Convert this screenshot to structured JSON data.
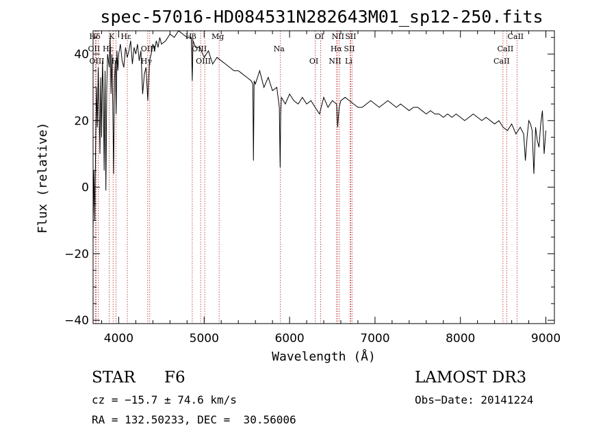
{
  "chart_data": {
    "type": "line",
    "title": "spec-57016-HD084531N282643M01_sp12-250.fits",
    "xlabel": "Wavelength (Å)",
    "ylabel": "Flux (relative)",
    "xlim": [
      3700,
      9100
    ],
    "ylim": [
      -41,
      47
    ],
    "xticks": [
      4000,
      5000,
      6000,
      7000,
      8000,
      9000
    ],
    "yticks": [
      -40,
      -20,
      0,
      20,
      40
    ],
    "grid": false,
    "series": [
      {
        "x": [
          3700,
          3710,
          3720,
          3730,
          3740,
          3750,
          3760,
          3770,
          3780,
          3790,
          3800,
          3810,
          3820,
          3830,
          3840,
          3850,
          3860,
          3870,
          3880,
          3890,
          3900,
          3910,
          3920,
          3930,
          3940,
          3950,
          3960,
          3970,
          3980,
          3990,
          4000,
          4020,
          4040,
          4060,
          4080,
          4100,
          4120,
          4140,
          4160,
          4180,
          4200,
          4220,
          4240,
          4260,
          4280,
          4300,
          4320,
          4340,
          4360,
          4380,
          4400,
          4420,
          4440,
          4460,
          4480,
          4500,
          4550,
          4600,
          4650,
          4700,
          4750,
          4800,
          4850,
          4861,
          4870,
          4900,
          4950,
          5000,
          5050,
          5100,
          5150,
          5200,
          5250,
          5300,
          5350,
          5400,
          5450,
          5500,
          5550,
          5570,
          5577,
          5585,
          5600,
          5650,
          5700,
          5750,
          5800,
          5850,
          5880,
          5890,
          5896,
          5905,
          5950,
          6000,
          6050,
          6100,
          6150,
          6200,
          6250,
          6300,
          6350,
          6400,
          6450,
          6500,
          6550,
          6563,
          6580,
          6600,
          6650,
          6700,
          6750,
          6800,
          6850,
          6900,
          6950,
          7000,
          7050,
          7100,
          7150,
          7200,
          7250,
          7300,
          7350,
          7400,
          7450,
          7500,
          7550,
          7600,
          7650,
          7700,
          7750,
          7800,
          7850,
          7900,
          7950,
          8000,
          8050,
          8100,
          8150,
          8200,
          8250,
          8300,
          8350,
          8400,
          8450,
          8500,
          8550,
          8600,
          8650,
          8700,
          8720,
          8740,
          8760,
          8780,
          8800,
          8820,
          8840,
          8860,
          8880,
          8900,
          8920,
          8940,
          8960,
          8980,
          9000
        ],
        "y": [
          -13,
          5,
          -10,
          12,
          30,
          18,
          36,
          25,
          10,
          33,
          15,
          38,
          28,
          5,
          35,
          -1,
          30,
          40,
          38,
          36,
          45,
          28,
          40,
          26,
          4,
          32,
          38,
          22,
          41,
          35,
          40,
          43,
          38,
          36,
          42,
          39,
          41,
          44,
          37,
          42,
          40,
          43,
          38,
          41,
          28,
          34,
          36,
          26,
          38,
          40,
          43,
          41,
          44,
          42,
          45,
          43,
          44,
          46,
          45,
          47,
          46,
          45,
          45,
          32,
          44,
          42,
          42,
          39,
          41,
          37,
          39,
          38,
          37,
          36,
          35,
          35,
          34,
          33,
          32,
          31,
          8,
          32,
          31,
          35,
          30,
          33,
          29,
          30,
          24,
          6,
          22,
          27,
          25,
          28,
          26,
          25,
          27,
          25,
          26,
          24,
          22,
          27,
          24,
          26,
          25,
          18,
          24,
          26,
          27,
          26,
          25,
          24,
          24,
          25,
          26,
          25,
          24,
          25,
          26,
          25,
          24,
          25,
          24,
          23,
          24,
          24,
          23,
          22,
          23,
          22,
          22,
          21,
          22,
          21,
          22,
          21,
          20,
          21,
          22,
          21,
          20,
          21,
          20,
          19,
          20,
          18,
          17,
          19,
          16,
          18,
          17,
          16,
          8,
          15,
          20,
          19,
          17,
          4,
          18,
          14,
          12,
          19,
          23,
          10,
          17
        ]
      }
    ],
    "spectral_lines": [
      {
        "label": "Hδ",
        "wavelength": 3737
      },
      {
        "label": "OII",
        "wavelength": 3727
      },
      {
        "label": "OIII",
        "wavelength": 3760
      },
      {
        "label": "K",
        "wavelength": 3934
      },
      {
        "label": "Hε",
        "wavelength": 3889
      },
      {
        "label": "H",
        "wavelength": 3969
      },
      {
        "label": "Hε",
        "wavelength": 4101
      },
      {
        "label": "OIII",
        "wavelength": 4363
      },
      {
        "label": "Hγ",
        "wavelength": 4340
      },
      {
        "label": "Hβ",
        "wavelength": 4861
      },
      {
        "label": "OIII",
        "wavelength": 4959
      },
      {
        "label": "OIII",
        "wavelength": 5007
      },
      {
        "label": "Mg",
        "wavelength": 5175
      },
      {
        "label": "Na",
        "wavelength": 5893
      },
      {
        "label": "OI",
        "wavelength": 6300
      },
      {
        "label": "OI",
        "wavelength": 6364
      },
      {
        "label": "Hα",
        "wavelength": 6563
      },
      {
        "label": "NII",
        "wavelength": 6548
      },
      {
        "label": "NII",
        "wavelength": 6583
      },
      {
        "label": "SII",
        "wavelength": 6716
      },
      {
        "label": "Li",
        "wavelength": 6708
      },
      {
        "label": "SII",
        "wavelength": 6731
      },
      {
        "label": "CaII",
        "wavelength": 8542
      },
      {
        "label": "CaII",
        "wavelength": 8498
      },
      {
        "label": "CaII",
        "wavelength": 8662
      }
    ]
  },
  "info": {
    "class": "STAR",
    "subclass": "F6",
    "survey": "LAMOST DR3",
    "cz": "cz = −15.7 ± 74.6 km/s",
    "obs_date": "Obs−Date: 20141224",
    "radec": "RA = 132.50233, DEC =  30.56006"
  }
}
